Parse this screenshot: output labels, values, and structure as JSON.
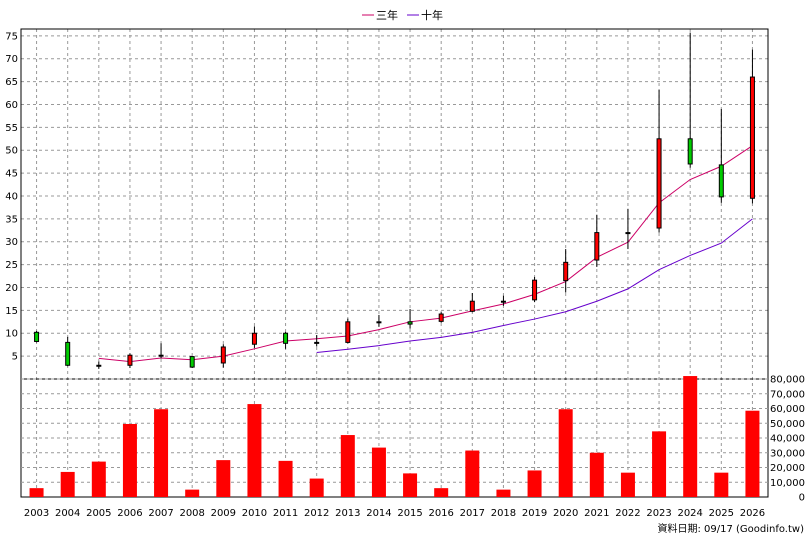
{
  "chart_data": {
    "type": "candlestick+bar",
    "legend": [
      {
        "name": "三年",
        "color": "#cc0066"
      },
      {
        "name": "十年",
        "color": "#6600cc"
      }
    ],
    "categories": [
      "2003",
      "2004",
      "2005",
      "2006",
      "2007",
      "2008",
      "2009",
      "2010",
      "2011",
      "2012",
      "2013",
      "2014",
      "2015",
      "2016",
      "2017",
      "2018",
      "2019",
      "2020",
      "2021",
      "2022",
      "2023",
      "2024",
      "2025",
      "2026"
    ],
    "price_axis": {
      "ylim": [
        0,
        76.5
      ],
      "ticks": [
        5,
        10,
        15,
        20,
        25,
        30,
        35,
        40,
        45,
        50,
        55,
        60,
        65,
        70,
        75
      ],
      "position": "left"
    },
    "volume_axis": {
      "ylim": [
        0,
        80000
      ],
      "ticks": [
        0,
        10000,
        20000,
        30000,
        40000,
        50000,
        60000,
        70000,
        80000
      ],
      "tick_labels": [
        "0",
        "10,000",
        "20,000",
        "30,000",
        "40,000",
        "50,000",
        "60,000",
        "70,000",
        "80,000"
      ],
      "position": "right"
    },
    "candles": [
      {
        "x": "2003",
        "open": 8.2,
        "high": 10.5,
        "low": 8.0,
        "close": 10.2
      },
      {
        "x": "2004",
        "open": 3.0,
        "high": 9.2,
        "low": 2.8,
        "close": 8.0
      },
      {
        "x": "2005",
        "open": 2.9,
        "high": 3.8,
        "low": 2.2,
        "close": 3.0
      },
      {
        "x": "2006",
        "open": 5.2,
        "high": 5.6,
        "low": 2.4,
        "close": 3.0
      },
      {
        "x": "2007",
        "open": 5.2,
        "high": 7.8,
        "low": 4.5,
        "close": 5.0
      },
      {
        "x": "2008",
        "open": 2.6,
        "high": 5.0,
        "low": 2.4,
        "close": 4.9
      },
      {
        "x": "2009",
        "open": 7.0,
        "high": 7.6,
        "low": 2.5,
        "close": 3.5
      },
      {
        "x": "2010",
        "open": 10.0,
        "high": 11.5,
        "low": 6.8,
        "close": 7.6
      },
      {
        "x": "2011",
        "open": 7.8,
        "high": 10.3,
        "low": 6.6,
        "close": 10.0
      },
      {
        "x": "2012",
        "open": 8.0,
        "high": 9.6,
        "low": 7.1,
        "close": 7.8
      },
      {
        "x": "2013",
        "open": 12.5,
        "high": 13.2,
        "low": 7.8,
        "close": 8.0
      },
      {
        "x": "2014",
        "open": 12.3,
        "high": 14.0,
        "low": 11.4,
        "close": 12.5
      },
      {
        "x": "2015",
        "open": 12.0,
        "high": 15.3,
        "low": 11.0,
        "close": 12.5
      },
      {
        "x": "2016",
        "open": 14.2,
        "high": 14.6,
        "low": 12.3,
        "close": 12.6
      },
      {
        "x": "2017",
        "open": 17.0,
        "high": 18.8,
        "low": 14.6,
        "close": 14.8
      },
      {
        "x": "2018",
        "open": 17.0,
        "high": 18.2,
        "low": 16.0,
        "close": 16.9
      },
      {
        "x": "2019",
        "open": 21.6,
        "high": 22.3,
        "low": 16.8,
        "close": 17.3
      },
      {
        "x": "2020",
        "open": 25.5,
        "high": 28.4,
        "low": 18.9,
        "close": 21.5
      },
      {
        "x": "2021",
        "open": 32.0,
        "high": 35.9,
        "low": 24.5,
        "close": 26.0
      },
      {
        "x": "2022",
        "open": 32.0,
        "high": 37.2,
        "low": 28.4,
        "close": 31.8
      },
      {
        "x": "2023",
        "open": 52.5,
        "high": 63.2,
        "low": 32.0,
        "close": 33.0
      },
      {
        "x": "2024",
        "open": 47.0,
        "high": 75.7,
        "low": 46.2,
        "close": 52.5
      },
      {
        "x": "2025",
        "open": 39.8,
        "high": 59.0,
        "low": 38.5,
        "close": 46.8
      },
      {
        "x": "2026",
        "open": 66.0,
        "high": 72.0,
        "low": 38.4,
        "close": 39.5
      }
    ],
    "series": [
      {
        "name": "三年",
        "x": [
          "2005",
          "2006",
          "2007",
          "2008",
          "2009",
          "2010",
          "2011",
          "2012",
          "2013",
          "2014",
          "2015",
          "2016",
          "2017",
          "2018",
          "2019",
          "2020",
          "2021",
          "2022",
          "2023",
          "2024",
          "2025",
          "2026"
        ],
        "values": [
          4.5,
          3.8,
          4.6,
          4.2,
          5.0,
          6.6,
          8.3,
          8.8,
          9.4,
          10.8,
          12.5,
          13.3,
          14.9,
          16.4,
          18.5,
          21.3,
          26.6,
          29.9,
          38.5,
          43.6,
          46.5,
          51.0
        ]
      },
      {
        "name": "十年",
        "x": [
          "2012",
          "2013",
          "2014",
          "2015",
          "2016",
          "2017",
          "2018",
          "2019",
          "2020",
          "2021",
          "2022",
          "2023",
          "2024",
          "2025",
          "2026"
        ],
        "values": [
          5.8,
          6.5,
          7.3,
          8.3,
          9.1,
          10.2,
          11.7,
          13.1,
          14.7,
          17.0,
          19.7,
          23.9,
          27.0,
          29.7,
          35.0
        ]
      }
    ],
    "volume": [
      6000,
      17000,
      24000,
      49500,
      59500,
      5000,
      25000,
      63000,
      24500,
      12500,
      42000,
      33500,
      16000,
      6000,
      31500,
      5000,
      18000,
      59500,
      30000,
      16500,
      44500,
      82000,
      16500,
      58500
    ],
    "grid": true,
    "footnote": "資料日期: 09/17  (Goodinfo.tw)"
  }
}
